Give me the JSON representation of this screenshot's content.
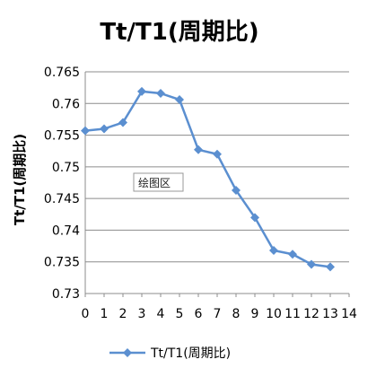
{
  "chart_data": {
    "type": "line",
    "title": "Tt/T1(周期比)",
    "xlabel": "",
    "ylabel": "Tt/T1(周期比)",
    "xlim": [
      0,
      14
    ],
    "ylim": [
      0.73,
      0.765
    ],
    "x_ticks": [
      "0",
      "1",
      "2",
      "3",
      "4",
      "5",
      "6",
      "7",
      "8",
      "9",
      "10",
      "11",
      "12",
      "13",
      "14"
    ],
    "y_ticks": [
      "0.73",
      "0.735",
      "0.74",
      "0.745",
      "0.75",
      "0.755",
      "0.76",
      "0.765"
    ],
    "grid": true,
    "legend_position": "bottom",
    "series": [
      {
        "name": "Tt/T1(周期比)",
        "color": "#5B8FD0",
        "x": [
          0,
          1,
          2,
          3,
          4,
          5,
          6,
          7,
          8,
          9,
          10,
          11,
          12,
          13
        ],
        "values": [
          0.7557,
          0.756,
          0.757,
          0.7619,
          0.7616,
          0.7606,
          0.7527,
          0.752,
          0.7463,
          0.742,
          0.7368,
          0.7362,
          0.7346,
          0.7342
        ]
      }
    ]
  },
  "plot_area_label": "绘图区"
}
